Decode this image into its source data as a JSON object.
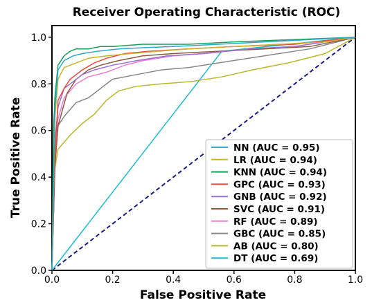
{
  "chart_data": {
    "type": "line",
    "title": "Receiver Operating Characteristic (ROC)",
    "xlabel": "False Positive Rate",
    "ylabel": "True Positive Rate",
    "xlim": [
      0.0,
      1.0
    ],
    "ylim": [
      0.0,
      1.05
    ],
    "x_ticks": [
      "0.0",
      "0.2",
      "0.4",
      "0.6",
      "0.8",
      "1.0"
    ],
    "y_ticks": [
      "0.0",
      "0.2",
      "0.4",
      "0.6",
      "0.8",
      "1.0"
    ],
    "grid": false,
    "legend_position": "bottom-right",
    "reference_line": {
      "x": [
        0,
        1
      ],
      "y": [
        0,
        1
      ],
      "color": "#1a1a80",
      "style": "dashed"
    },
    "series": [
      {
        "name": "NN (AUC = 0.95)",
        "color": "#2aa9c9",
        "x": [
          0,
          0.01,
          0.02,
          0.04,
          0.07,
          0.1,
          0.15,
          0.22,
          0.3,
          0.4,
          0.55,
          0.7,
          0.85,
          1.0
        ],
        "y": [
          0,
          0.7,
          0.86,
          0.9,
          0.92,
          0.93,
          0.94,
          0.95,
          0.955,
          0.96,
          0.97,
          0.98,
          0.99,
          1.0
        ]
      },
      {
        "name": "LR (AUC = 0.94)",
        "color": "#c9b22a",
        "x": [
          0,
          0.01,
          0.02,
          0.04,
          0.08,
          0.12,
          0.18,
          0.26,
          0.35,
          0.45,
          0.6,
          0.75,
          0.9,
          1.0
        ],
        "y": [
          0,
          0.66,
          0.82,
          0.87,
          0.89,
          0.91,
          0.92,
          0.93,
          0.94,
          0.95,
          0.96,
          0.97,
          0.98,
          1.0
        ]
      },
      {
        "name": "KNN (AUC = 0.94)",
        "color": "#1a9c5a",
        "x": [
          0,
          0.005,
          0.01,
          0.02,
          0.04,
          0.06,
          0.08,
          0.12,
          0.16,
          0.2,
          0.3,
          0.45,
          0.6,
          0.8,
          1.0
        ],
        "y": [
          0,
          0.6,
          0.75,
          0.88,
          0.92,
          0.94,
          0.95,
          0.95,
          0.96,
          0.96,
          0.97,
          0.97,
          0.98,
          0.99,
          1.0
        ]
      },
      {
        "name": "GPC (AUC = 0.93)",
        "color": "#e8463c",
        "x": [
          0,
          0.01,
          0.02,
          0.04,
          0.06,
          0.1,
          0.14,
          0.18,
          0.24,
          0.32,
          0.45,
          0.6,
          0.8,
          1.0
        ],
        "y": [
          0,
          0.48,
          0.73,
          0.78,
          0.82,
          0.86,
          0.89,
          0.91,
          0.93,
          0.94,
          0.95,
          0.96,
          0.97,
          1.0
        ]
      },
      {
        "name": "GNB (AUC = 0.92)",
        "color": "#9a6fd1",
        "x": [
          0,
          0.01,
          0.02,
          0.04,
          0.06,
          0.1,
          0.14,
          0.2,
          0.28,
          0.38,
          0.5,
          0.65,
          0.8,
          1.0
        ],
        "y": [
          0,
          0.55,
          0.7,
          0.78,
          0.8,
          0.84,
          0.86,
          0.88,
          0.9,
          0.92,
          0.93,
          0.95,
          0.96,
          1.0
        ]
      },
      {
        "name": "SVC (AUC = 0.91)",
        "color": "#8b5a3c",
        "x": [
          0,
          0.01,
          0.02,
          0.05,
          0.08,
          0.12,
          0.16,
          0.22,
          0.3,
          0.4,
          0.55,
          0.7,
          0.85,
          1.0
        ],
        "y": [
          0,
          0.45,
          0.62,
          0.76,
          0.82,
          0.86,
          0.88,
          0.9,
          0.92,
          0.93,
          0.94,
          0.95,
          0.96,
          1.0
        ]
      },
      {
        "name": "RF (AUC = 0.89)",
        "color": "#e97dd0",
        "x": [
          0,
          0.01,
          0.02,
          0.04,
          0.08,
          0.12,
          0.18,
          0.24,
          0.3,
          0.4,
          0.5,
          0.65,
          0.8,
          1.0
        ],
        "y": [
          0,
          0.55,
          0.65,
          0.74,
          0.8,
          0.83,
          0.85,
          0.88,
          0.9,
          0.92,
          0.93,
          0.95,
          0.96,
          1.0
        ]
      },
      {
        "name": "GBC (AUC = 0.85)",
        "color": "#888888",
        "x": [
          0,
          0.005,
          0.01,
          0.02,
          0.04,
          0.08,
          0.12,
          0.16,
          0.2,
          0.28,
          0.36,
          0.45,
          0.55,
          0.7,
          0.85,
          1.0
        ],
        "y": [
          0,
          0.34,
          0.57,
          0.62,
          0.66,
          0.72,
          0.74,
          0.78,
          0.82,
          0.84,
          0.86,
          0.87,
          0.89,
          0.92,
          0.95,
          1.0
        ]
      },
      {
        "name": "AB (AUC = 0.80)",
        "color": "#b8b82e",
        "x": [
          0,
          0.005,
          0.01,
          0.02,
          0.06,
          0.1,
          0.14,
          0.18,
          0.22,
          0.28,
          0.36,
          0.46,
          0.56,
          0.66,
          0.78,
          0.9,
          1.0
        ],
        "y": [
          0,
          0.3,
          0.44,
          0.52,
          0.58,
          0.63,
          0.67,
          0.73,
          0.77,
          0.79,
          0.8,
          0.81,
          0.83,
          0.86,
          0.89,
          0.93,
          1.0
        ]
      },
      {
        "name": "DT (AUC = 0.69)",
        "color": "#17becf",
        "x": [
          0,
          0.56,
          1.0
        ],
        "y": [
          0,
          0.94,
          1.0
        ]
      }
    ]
  }
}
